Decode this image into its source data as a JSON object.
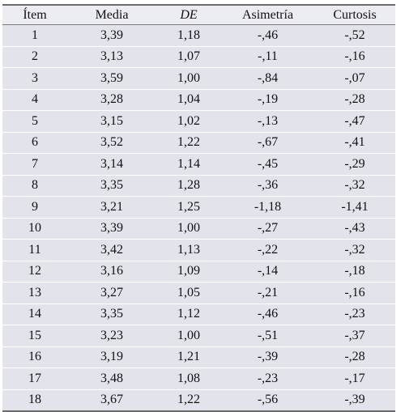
{
  "table": {
    "headers": [
      "Ítem",
      "Media",
      "DE",
      "Asimetría",
      "Curtosis"
    ],
    "rows": [
      [
        "1",
        "3,39",
        "1,18",
        "-,46",
        "-,52"
      ],
      [
        "2",
        "3,13",
        "1,07",
        "-,11",
        "-,16"
      ],
      [
        "3",
        "3,59",
        "1,00",
        "-,84",
        "-,07"
      ],
      [
        "4",
        "3,28",
        "1,04",
        "-,19",
        "-,28"
      ],
      [
        "5",
        "3,15",
        "1,02",
        "-,13",
        "-,47"
      ],
      [
        "6",
        "3,52",
        "1,22",
        "-,67",
        "-,41"
      ],
      [
        "7",
        "3,14",
        "1,14",
        "-,45",
        "-,29"
      ],
      [
        "8",
        "3,35",
        "1,28",
        "-,36",
        "-,32"
      ],
      [
        "9",
        "3,21",
        "1,25",
        "-1,18",
        "-1,41"
      ],
      [
        "10",
        "3,39",
        "1,00",
        "-,27",
        "-,43"
      ],
      [
        "11",
        "3,42",
        "1,13",
        "-,22",
        "-,32"
      ],
      [
        "12",
        "3,16",
        "1,09",
        "-,14",
        "-,18"
      ],
      [
        "13",
        "3,27",
        "1,05",
        "-,21",
        "-,16"
      ],
      [
        "14",
        "3,35",
        "1,12",
        "-,46",
        "-,23"
      ],
      [
        "15",
        "3,23",
        "1,00",
        "-,51",
        "-,37"
      ],
      [
        "16",
        "3,19",
        "1,21",
        "-,39",
        "-,28"
      ],
      [
        "17",
        "3,48",
        "1,08",
        "-,23",
        "-,17"
      ],
      [
        "18",
        "3,67",
        "1,22",
        "-,56",
        "-,39"
      ]
    ]
  }
}
